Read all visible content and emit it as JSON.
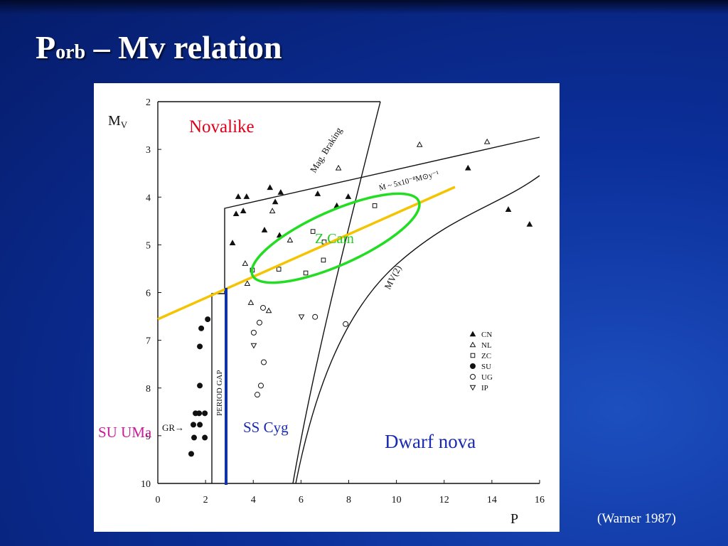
{
  "title": {
    "main": "P",
    "sub": "orb",
    "rest": " – Mv relation"
  },
  "citation": "(Warner 1987)",
  "chart_data": {
    "type": "scatter",
    "xlabel": "P",
    "ylabel": "M",
    "ylabel_sub": "V",
    "xlim": [
      0,
      16
    ],
    "ylim": [
      10,
      2
    ],
    "xticks": [
      0,
      2,
      4,
      6,
      8,
      10,
      12,
      14,
      16
    ],
    "yticks": [
      2,
      3,
      4,
      5,
      6,
      7,
      8,
      9,
      10
    ],
    "annotations": {
      "novalike": "Novalike",
      "zcam": "Z Cam",
      "suuma": "SU UMa",
      "sscyg": "SS Cyg",
      "dwarf": "Dwarf nova",
      "magbraking": "Mag. Braking",
      "mdot": "Ṁ ~ 5x10⁻⁸M⊙y⁻¹",
      "mv2": "MV(2)",
      "gap": "PERIOD GAP",
      "gr": "GR→"
    },
    "series": [
      {
        "name": "CN",
        "color": "#111111",
        "marker": "triangle-filled",
        "x": [
          3.37,
          3.72,
          4.7,
          5.15,
          3.28,
          3.58,
          4.92,
          4.47,
          3.13,
          5.1,
          6.7,
          7.98,
          13,
          14.69,
          15.58,
          7.5
        ],
        "values": [
          3.99,
          3.99,
          3.8,
          3.9,
          4.35,
          4.29,
          4.1,
          4.69,
          4.96,
          4.8,
          3.93,
          3.99,
          3.39,
          4.26,
          4.57,
          4.18
        ]
      },
      {
        "name": "NL",
        "color": "#111111",
        "marker": "triangle-open",
        "x": [
          10.97,
          13.8,
          7.57,
          4.8,
          5.54,
          3.66,
          3.75,
          3.9,
          4.65
        ],
        "values": [
          2.9,
          2.84,
          3.39,
          4.29,
          4.9,
          5.39,
          5.81,
          6.21,
          6.38
        ]
      },
      {
        "name": "ZC",
        "color": "#111111",
        "marker": "square-open",
        "x": [
          6.5,
          9.09,
          6.97,
          6.94,
          5.07,
          3.96,
          6.2
        ],
        "values": [
          4.72,
          4.18,
          4.94,
          5.32,
          5.51,
          5.53,
          5.59
        ]
      },
      {
        "name": "SU",
        "color": "#111111",
        "marker": "circle-filled",
        "x": [
          2.09,
          1.82,
          1.76,
          1.76,
          1.58,
          1.73,
          1.97,
          1.49,
          1.76,
          1.52,
          1.97,
          1.4
        ],
        "values": [
          6.56,
          6.75,
          7.13,
          7.95,
          8.53,
          8.53,
          8.53,
          8.77,
          8.77,
          9.04,
          9.04,
          9.38
        ]
      },
      {
        "name": "UG",
        "color": "#111111",
        "marker": "circle-open",
        "x": [
          4.41,
          4.26,
          4.02,
          4.44,
          4.32,
          4.17,
          6.59,
          7.87
        ],
        "values": [
          6.32,
          6.63,
          6.84,
          7.46,
          7.95,
          8.14,
          6.51,
          6.66
        ]
      },
      {
        "name": "IP",
        "color": "#111111",
        "marker": "triangle-down-open",
        "x": [
          6.02,
          4.02
        ],
        "values": [
          6.51,
          7.11
        ]
      }
    ]
  }
}
